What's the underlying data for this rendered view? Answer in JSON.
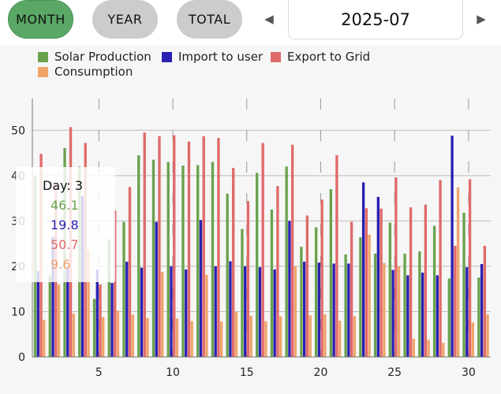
{
  "range_buttons": {
    "month": "MONTH",
    "year": "YEAR",
    "total": "TOTAL"
  },
  "period": {
    "prev_icon": "◀",
    "next_icon": "▶",
    "value": "2025-07"
  },
  "legend": [
    {
      "name": "Solar Production",
      "color": "#6aa24e"
    },
    {
      "name": "Import to user",
      "color": "#2a1fb3"
    },
    {
      "name": "Export to Grid",
      "color": "#e06a6a"
    },
    {
      "name": "Consumption",
      "color": "#f0a46a"
    }
  ],
  "tooltip": {
    "title": "Day: 3",
    "values": [
      "46.1",
      "19.8",
      "50.7",
      "9.6"
    ]
  },
  "chart_data": {
    "type": "bar",
    "categories": [
      1,
      2,
      3,
      4,
      5,
      6,
      7,
      8,
      9,
      10,
      11,
      12,
      13,
      14,
      15,
      16,
      17,
      18,
      19,
      20,
      21,
      22,
      23,
      24,
      25,
      26,
      27,
      28,
      29,
      30,
      31
    ],
    "x_ticks": [
      5,
      10,
      15,
      20,
      25,
      30
    ],
    "y_ticks": [
      0,
      10,
      20,
      30,
      40,
      50
    ],
    "ylim": [
      0,
      57
    ],
    "grid": true,
    "legend_position": "top",
    "series": [
      {
        "name": "Solar Production",
        "color": "#6aa24e",
        "values": [
          39.8,
          18.0,
          46.1,
          42.0,
          12.8,
          26.0,
          29.8,
          44.5,
          43.5,
          43.0,
          42.2,
          42.3,
          43.0,
          36.0,
          28.2,
          40.6,
          32.5,
          42.0,
          24.3,
          28.6,
          37.0,
          22.6,
          26.4,
          22.8,
          29.6,
          22.8,
          23.3,
          28.9,
          17.3,
          31.8,
          17.5
        ]
      },
      {
        "name": "Import to user",
        "color": "#2a1fb3",
        "values": [
          19.0,
          26.5,
          19.8,
          35.5,
          19.3,
          16.3,
          21.0,
          19.7,
          29.8,
          20.0,
          19.3,
          30.2,
          20.0,
          21.1,
          20.0,
          19.8,
          19.3,
          30.0,
          21.0,
          20.8,
          20.6,
          20.6,
          38.5,
          35.3,
          19.2,
          18.0,
          18.6,
          18.0,
          48.8,
          19.8,
          20.5
        ]
      },
      {
        "name": "Export to Grid",
        "color": "#e06a6a",
        "values": [
          44.8,
          38.0,
          50.7,
          47.2,
          16.0,
          32.3,
          37.5,
          49.5,
          48.7,
          48.9,
          47.5,
          48.7,
          48.3,
          41.7,
          34.4,
          47.2,
          37.7,
          46.8,
          31.2,
          34.7,
          44.5,
          29.8,
          32.8,
          32.7,
          39.6,
          33.0,
          33.6,
          39.0,
          24.5,
          39.2,
          24.5
        ]
      },
      {
        "name": "Consumption",
        "color": "#f0a46a",
        "values": [
          8.2,
          16.0,
          9.6,
          23.5,
          8.8,
          10.2,
          9.3,
          8.6,
          18.8,
          8.5,
          7.9,
          18.1,
          7.8,
          10.0,
          9.1,
          7.9,
          9.0,
          20.0,
          9.2,
          9.4,
          8.0,
          9.0,
          27.0,
          20.7,
          20.0,
          4.0,
          3.8,
          3.1,
          37.4,
          7.6,
          9.4
        ]
      }
    ]
  }
}
